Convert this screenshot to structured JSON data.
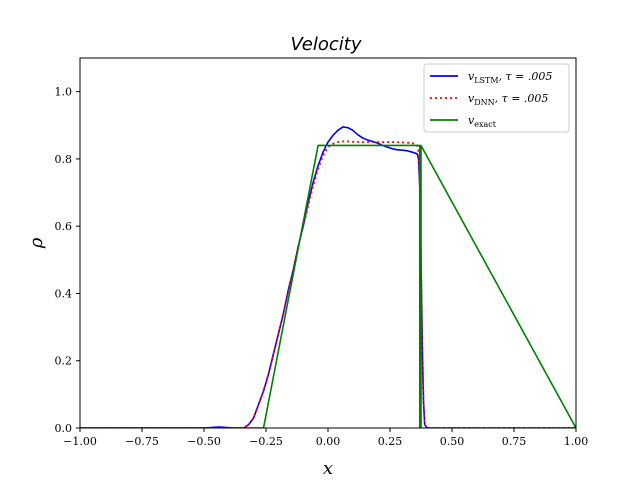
{
  "chart_data": {
    "type": "line",
    "title": "Velocity",
    "xlabel": "x",
    "ylabel": "ρ",
    "xlim": [
      -1.0,
      1.0
    ],
    "ylim": [
      0.0,
      1.1
    ],
    "grid": false,
    "legend_position": "top-right",
    "x_ticks": [
      -1.0,
      -0.75,
      -0.5,
      -0.25,
      0.0,
      0.25,
      0.5,
      0.75,
      1.0
    ],
    "x_tick_labels": [
      "−1.00",
      "−0.75",
      "−0.50",
      "−0.25",
      "0.00",
      "0.25",
      "0.50",
      "0.75",
      "1.00"
    ],
    "y_ticks": [
      0.0,
      0.2,
      0.4,
      0.6,
      0.8,
      1.0
    ],
    "y_tick_labels": [
      "0.0",
      "0.2",
      "0.4",
      "0.6",
      "0.8",
      "1.0"
    ],
    "series": [
      {
        "name": "v_LSTM, τ = .005",
        "legend_main": "v",
        "legend_sub": "LSTM",
        "legend_rest": ", τ = .005",
        "color": "#0000ff",
        "style": "solid",
        "x": [
          -1.0,
          -0.5,
          -0.46,
          -0.44,
          -0.42,
          -0.38,
          -0.34,
          -0.32,
          -0.3,
          -0.28,
          -0.26,
          -0.24,
          -0.22,
          -0.2,
          -0.18,
          -0.16,
          -0.14,
          -0.12,
          -0.1,
          -0.08,
          -0.06,
          -0.04,
          -0.02,
          0.0,
          0.02,
          0.04,
          0.06,
          0.08,
          0.1,
          0.12,
          0.14,
          0.16,
          0.18,
          0.2,
          0.22,
          0.24,
          0.26,
          0.28,
          0.3,
          0.32,
          0.34,
          0.36,
          0.365,
          0.37,
          0.375,
          0.38,
          0.385,
          0.39,
          0.4,
          1.0
        ],
        "y": [
          0.0,
          0.0,
          0.002,
          0.003,
          0.002,
          0.0,
          0.0,
          0.01,
          0.03,
          0.07,
          0.11,
          0.16,
          0.22,
          0.28,
          0.34,
          0.41,
          0.47,
          0.54,
          0.6,
          0.67,
          0.73,
          0.78,
          0.82,
          0.85,
          0.87,
          0.885,
          0.895,
          0.893,
          0.885,
          0.872,
          0.862,
          0.856,
          0.852,
          0.847,
          0.84,
          0.835,
          0.83,
          0.827,
          0.826,
          0.824,
          0.82,
          0.815,
          0.8,
          0.72,
          0.5,
          0.25,
          0.08,
          0.01,
          0.0,
          0.0
        ]
      },
      {
        "name": "v_DNN, τ = .005",
        "legend_main": "v",
        "legend_sub": "DNN",
        "legend_rest": ", τ = .005",
        "color": "#ff0000",
        "style": "dotted",
        "x": [
          -1.0,
          -0.34,
          -0.32,
          -0.3,
          -0.28,
          -0.26,
          -0.24,
          -0.22,
          -0.2,
          -0.18,
          -0.16,
          -0.14,
          -0.12,
          -0.1,
          -0.08,
          -0.06,
          -0.04,
          -0.02,
          0.0,
          0.02,
          0.04,
          0.06,
          0.08,
          0.1,
          0.14,
          0.2,
          0.26,
          0.3,
          0.34,
          0.36,
          0.365,
          0.37,
          0.375,
          0.38,
          0.385,
          0.39,
          0.4,
          1.0
        ],
        "y": [
          0.0,
          0.0,
          0.01,
          0.03,
          0.07,
          0.11,
          0.16,
          0.22,
          0.28,
          0.34,
          0.41,
          0.47,
          0.54,
          0.6,
          0.66,
          0.72,
          0.77,
          0.81,
          0.835,
          0.845,
          0.85,
          0.852,
          0.852,
          0.851,
          0.85,
          0.85,
          0.85,
          0.849,
          0.847,
          0.84,
          0.82,
          0.72,
          0.5,
          0.25,
          0.08,
          0.01,
          0.0,
          0.0
        ]
      },
      {
        "name": "v_exact",
        "legend_main": "v",
        "legend_sub": "exact",
        "legend_rest": "",
        "color": "#008000",
        "style": "solid",
        "x": [
          -1.0,
          -0.26,
          -0.04,
          0.37,
          0.37,
          0.375,
          0.375,
          1.0
        ],
        "y": [
          0.0,
          0.0,
          0.84,
          0.84,
          0.0,
          0.0,
          0.84,
          0.0
        ]
      }
    ]
  }
}
